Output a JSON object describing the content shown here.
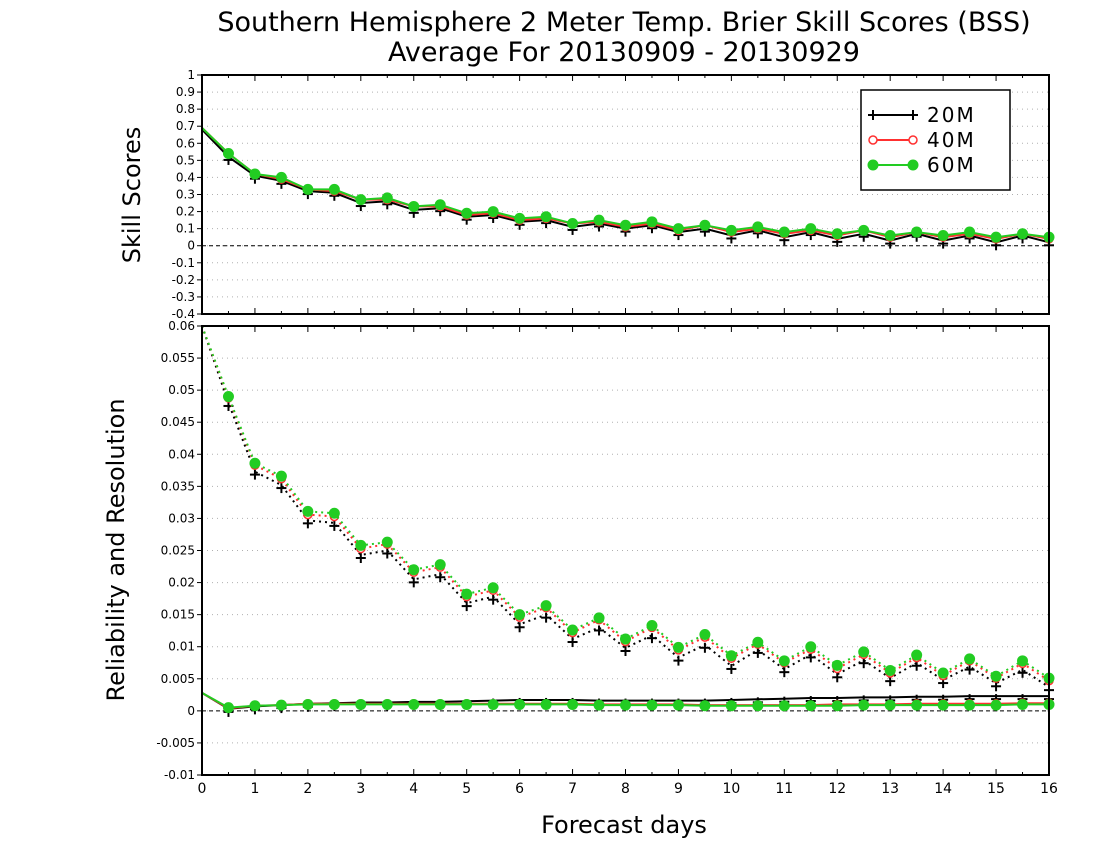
{
  "chart_data": [
    {
      "type": "line",
      "title": "Southern Hemisphere 2 Meter Temp. Brier Skill Scores (BSS)",
      "subtitle": "Average For 20130909 - 20130929",
      "xlabel": "",
      "ylabel": "Skill Scores",
      "xlim": [
        0,
        16
      ],
      "ylim": [
        -0.4,
        1
      ],
      "x_ticks": [
        "0",
        "1",
        "2",
        "3",
        "4",
        "5",
        "6",
        "7",
        "8",
        "9",
        "10",
        "11",
        "12",
        "13",
        "14",
        "15",
        "16"
      ],
      "y_ticks": [
        "-0.4",
        "-0.3",
        "-0.2",
        "-0.1",
        "0",
        "0.1",
        "0.2",
        "0.3",
        "0.4",
        "0.5",
        "0.6",
        "0.7",
        "0.8",
        "0.9",
        "1"
      ],
      "grid": true,
      "legend": "top-right",
      "x": [
        0,
        0.5,
        1,
        1.5,
        2,
        2.5,
        3,
        3.5,
        4,
        4.5,
        5,
        5.5,
        6,
        6.5,
        7,
        7.5,
        8,
        8.5,
        9,
        9.5,
        10,
        10.5,
        11,
        11.5,
        12,
        12.5,
        13,
        13.5,
        14,
        14.5,
        15,
        15.5,
        16
      ],
      "series": [
        {
          "name": "20M",
          "color": "#000000",
          "marker": "plus",
          "values": [
            0.68,
            0.52,
            0.41,
            0.38,
            0.32,
            0.31,
            0.25,
            0.26,
            0.21,
            0.22,
            0.17,
            0.18,
            0.14,
            0.15,
            0.11,
            0.13,
            0.1,
            0.12,
            0.08,
            0.1,
            0.06,
            0.09,
            0.05,
            0.08,
            0.04,
            0.07,
            0.03,
            0.07,
            0.03,
            0.06,
            0.02,
            0.06,
            0.02
          ]
        },
        {
          "name": "40M",
          "color": "#ff3030",
          "marker": "open-circle",
          "values": [
            0.69,
            0.54,
            0.42,
            0.39,
            0.33,
            0.32,
            0.27,
            0.27,
            0.23,
            0.23,
            0.18,
            0.19,
            0.15,
            0.16,
            0.13,
            0.14,
            0.11,
            0.13,
            0.09,
            0.12,
            0.08,
            0.1,
            0.07,
            0.09,
            0.06,
            0.09,
            0.05,
            0.08,
            0.05,
            0.07,
            0.04,
            0.07,
            0.04
          ]
        },
        {
          "name": "60M",
          "color": "#22cc22",
          "marker": "filled-circle",
          "values": [
            0.69,
            0.54,
            0.42,
            0.4,
            0.33,
            0.33,
            0.27,
            0.28,
            0.23,
            0.24,
            0.19,
            0.2,
            0.16,
            0.17,
            0.13,
            0.15,
            0.12,
            0.14,
            0.1,
            0.12,
            0.09,
            0.11,
            0.08,
            0.1,
            0.07,
            0.09,
            0.06,
            0.08,
            0.06,
            0.08,
            0.05,
            0.07,
            0.05
          ]
        }
      ]
    },
    {
      "type": "line",
      "xlabel": "Forecast days",
      "ylabel": "Reliability and Resolution",
      "xlim": [
        0,
        16
      ],
      "ylim": [
        -0.01,
        0.06
      ],
      "x_ticks": [
        "0",
        "1",
        "2",
        "3",
        "4",
        "5",
        "6",
        "7",
        "8",
        "9",
        "10",
        "11",
        "12",
        "13",
        "14",
        "15",
        "16"
      ],
      "y_ticks": [
        "-0.01",
        "-0.005",
        "0",
        "0.005",
        "0.01",
        "0.015",
        "0.02",
        "0.025",
        "0.03",
        "0.035",
        "0.04",
        "0.045",
        "0.05",
        "0.055",
        "0.06"
      ],
      "grid": true,
      "x": [
        0,
        0.5,
        1,
        1.5,
        2,
        2.5,
        3,
        3.5,
        4,
        4.5,
        5,
        5.5,
        6,
        6.5,
        7,
        7.5,
        8,
        8.5,
        9,
        9.5,
        10,
        10.5,
        11,
        11.5,
        12,
        12.5,
        13,
        13.5,
        14,
        14.5,
        15,
        15.5,
        16
      ],
      "series": [
        {
          "name": "20M",
          "kind": "resolution",
          "style": "dotted",
          "color": "#000000",
          "marker": "plus",
          "values": [
            0.06,
            0.048,
            0.0373,
            0.0352,
            0.0297,
            0.0293,
            0.0243,
            0.025,
            0.0205,
            0.0213,
            0.0168,
            0.0178,
            0.0135,
            0.015,
            0.0112,
            0.013,
            0.0098,
            0.0118,
            0.0083,
            0.0103,
            0.007,
            0.0095,
            0.0065,
            0.0088,
            0.0057,
            0.0079,
            0.0051,
            0.0075,
            0.0048,
            0.0069,
            0.0043,
            0.0064,
            0.0037
          ]
        },
        {
          "name": "40M",
          "kind": "resolution",
          "style": "dotted",
          "color": "#ff3030",
          "marker": "open-circle",
          "values": [
            0.06,
            0.0488,
            0.0383,
            0.0362,
            0.0306,
            0.0303,
            0.0253,
            0.026,
            0.0216,
            0.0224,
            0.0178,
            0.0188,
            0.0146,
            0.0161,
            0.0122,
            0.0142,
            0.0108,
            0.013,
            0.0095,
            0.0115,
            0.0082,
            0.0104,
            0.0075,
            0.0096,
            0.0066,
            0.0088,
            0.0059,
            0.0083,
            0.0055,
            0.0078,
            0.0051,
            0.0074,
            0.0047
          ]
        },
        {
          "name": "60M",
          "kind": "resolution",
          "style": "dotted",
          "color": "#22cc22",
          "marker": "filled-circle",
          "values": [
            0.06,
            0.049,
            0.0386,
            0.0366,
            0.0311,
            0.0308,
            0.0258,
            0.0263,
            0.022,
            0.0228,
            0.0182,
            0.0192,
            0.015,
            0.0164,
            0.0126,
            0.0145,
            0.0112,
            0.0133,
            0.0099,
            0.0119,
            0.0086,
            0.0107,
            0.0078,
            0.01,
            0.0071,
            0.0092,
            0.0063,
            0.0087,
            0.0059,
            0.0081,
            0.0054,
            0.0078,
            0.0051
          ]
        },
        {
          "name": "20M",
          "kind": "reliability",
          "style": "solid",
          "color": "#000000",
          "marker": "plus",
          "values": [
            0.0028,
            0.0003,
            0.0007,
            0.0009,
            0.0011,
            0.0012,
            0.0013,
            0.0013,
            0.0014,
            0.0014,
            0.0015,
            0.0016,
            0.0017,
            0.0017,
            0.0017,
            0.0016,
            0.0016,
            0.0016,
            0.0016,
            0.0016,
            0.0017,
            0.0018,
            0.0019,
            0.002,
            0.002,
            0.0021,
            0.0021,
            0.0022,
            0.0022,
            0.0023,
            0.0023,
            0.0023,
            0.0023
          ]
        },
        {
          "name": "40M",
          "kind": "reliability",
          "style": "solid",
          "color": "#ff3030",
          "marker": "open-circle",
          "values": [
            0.0028,
            0.0004,
            0.0008,
            0.0009,
            0.0011,
            0.0011,
            0.0011,
            0.0011,
            0.0011,
            0.0011,
            0.0011,
            0.0011,
            0.0011,
            0.0011,
            0.0011,
            0.001,
            0.001,
            0.001,
            0.001,
            0.0009,
            0.0009,
            0.0009,
            0.0009,
            0.0009,
            0.001,
            0.001,
            0.001,
            0.0011,
            0.0011,
            0.0011,
            0.0011,
            0.0012,
            0.0012
          ]
        },
        {
          "name": "60M",
          "kind": "reliability",
          "style": "solid",
          "color": "#22cc22",
          "marker": "filled-circle",
          "values": [
            0.0028,
            0.0005,
            0.0008,
            0.0009,
            0.001,
            0.001,
            0.001,
            0.001,
            0.001,
            0.001,
            0.001,
            0.001,
            0.001,
            0.001,
            0.001,
            0.0009,
            0.0009,
            0.0009,
            0.0009,
            0.0008,
            0.0008,
            0.0008,
            0.0008,
            0.0008,
            0.0008,
            0.0009,
            0.0009,
            0.0009,
            0.0009,
            0.0009,
            0.0009,
            0.001,
            0.001
          ]
        }
      ]
    }
  ]
}
